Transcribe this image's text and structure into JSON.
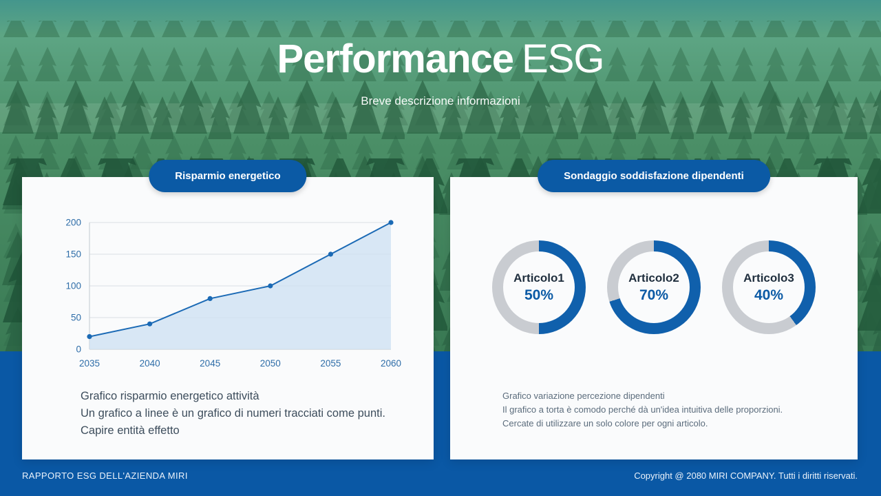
{
  "hero": {
    "title_bold": "Performance",
    "title_light": "ESG",
    "subtitle": "Breve descrizione informazioni"
  },
  "left_card": {
    "badge": "Risparmio energetico",
    "description_lines": [
      "Grafico risparmio energetico attività",
      "Un grafico a linee è un grafico di numeri tracciati come punti.",
      "Capire entità effetto"
    ]
  },
  "right_card": {
    "badge": "Sondaggio soddisfazione dipendenti",
    "donuts": [
      {
        "label": "Articolo1",
        "percent": 50,
        "value_label": "50%"
      },
      {
        "label": "Articolo2",
        "percent": 70,
        "value_label": "70%"
      },
      {
        "label": "Articolo3",
        "percent": 40,
        "value_label": "40%"
      }
    ],
    "description_lines": [
      "Grafico variazione percezione dipendenti",
      "Il grafico a torta è comodo perché dà un'idea intuitiva delle proporzioni.",
      "Cercate di utilizzare un solo colore per ogni articolo."
    ]
  },
  "footer": {
    "left": "RAPPORTO ESG DELL'AZIENDA MIRI",
    "right": "Copyright @ 2080 MIRI COMPANY. Tutti i diritti riservati."
  },
  "theme": {
    "accent_blue": "#0b5aa5",
    "donut_blue": "#1060ac",
    "donut_gray": "#c9ccd1",
    "band_blue": "#0a58a5",
    "tick_color": "#2e6da8"
  },
  "chart_data": [
    {
      "type": "area",
      "title": "Risparmio energetico",
      "x": [
        2035,
        2040,
        2045,
        2050,
        2055,
        2060
      ],
      "y": [
        20,
        40,
        80,
        100,
        150,
        200
      ],
      "ylim": [
        0,
        200
      ],
      "yticks": [
        0,
        50,
        100,
        150,
        200
      ],
      "grid": true,
      "legend": false,
      "line_color": "#1b6ab5",
      "fill_color": "#cfe2f2",
      "xlabel": "",
      "ylabel": ""
    },
    {
      "type": "pie",
      "style": "donut",
      "title": "Sondaggio soddisfazione dipendenti",
      "categories": [
        "Articolo1",
        "Articolo2",
        "Articolo3"
      ],
      "values": [
        50,
        70,
        40
      ],
      "unit": "%",
      "legend": false
    }
  ]
}
